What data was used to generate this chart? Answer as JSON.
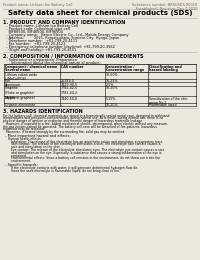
{
  "bg_color": "#ede8de",
  "header_left": "Product name: Lithium Ion Battery Cell",
  "header_right_line1": "Substance number: BRSUSDS-00010",
  "header_right_line2": "Established / Revision: Dec.7.2010",
  "main_title": "Safety data sheet for chemical products (SDS)",
  "section1_title": "1. PRODUCT AND COMPANY IDENTIFICATION",
  "section1_lines": [
    "  - Product name: Lithium Ion Battery Cell",
    "  - Product code: Cylindrical-type cell",
    "    BIF86500, BIF46500, BIF96504",
    "  - Company name:   Benco Electric Co., Ltd., Mobile Energy Company",
    "  - Address:         2021, Komatsuhara, Sumoto City, Hyogo, Japan",
    "  - Telephone number:   +81-799-20-4111",
    "  - Fax number:   +81-799-20-4123",
    "  - Emergency telephone number (daytime): +81-799-20-3562",
    "    (Night and holiday): +81-799-20-4101"
  ],
  "section2_title": "2. COMPOSITION / INFORMATION ON INGREDIENTS",
  "section2_sub": "  - Substance or preparation: Preparation",
  "section2_sub2": "    - Information about the chemical nature of product:",
  "col_headers1": [
    "Component / chemical name",
    "CAS number",
    "Concentration /\nConcentration range",
    "Classification and\nhazard labeling"
  ],
  "col_headers2": [
    "Several name",
    "",
    "Concentration range",
    "hazard labeling"
  ],
  "table_rows": [
    [
      "Lithium cobalt oxide\n(LiMnCo)PO4)",
      "-",
      "30-60%",
      "-"
    ],
    [
      "Iron",
      "26389-0",
      "10-25%",
      "-"
    ],
    [
      "Aluminum",
      "7429-90-5",
      "2-5%",
      "-"
    ],
    [
      "Graphite\n(Flake or graphite)\n(Artificial graphite)",
      "7782-42-5\n7782-44-2",
      "10-20%",
      "-"
    ],
    [
      "Copper",
      "7440-50-8",
      "5-15%",
      "Sensitization of the skin\ngroup No.2"
    ],
    [
      "Organic electrolyte",
      "-",
      "10-20%",
      "Flammable liquid"
    ]
  ],
  "section3_title": "3. HAZARDS IDENTIFICATION",
  "section3_lines": [
    "For the battery cell, chemical materials are stored in a hermetically sealed metal case, designed to withstand",
    "temperatures and pressures-concentrations during normal use. As a result, during normal use, there is no",
    "physical danger of ignition or explosion and thermal danger of hazardous materials leakage.",
    "   However, if exposed to a fire, added mechanical shocks, decomposed, when electric without any measure,",
    "the gas insides cannot be operated. The battery cell case will be breached of fire-patterns. hazardous",
    "materials may be released.",
    "   Moreover, if heated strongly by the surrounding fire, solid gas may be emitted."
  ],
  "section3_sub1": "  - Most important hazard and effects:",
  "section3_human_lines": [
    "     Human health effects:",
    "        Inhalation: The release of the electrolyte has an anesthetic action and stimulates a respiratory tract.",
    "        Skin contact: The release of the electrolyte stimulates a skin. The electrolyte skin contact causes a",
    "        sore and stimulation on the skin.",
    "        Eye contact: The release of the electrolyte stimulates eyes. The electrolyte eye contact causes a sore",
    "        and stimulation on the eye. Especially, a substance that causes a strong inflammation of the eye is",
    "        contained.",
    "        Environmental effects: Since a battery cell remains in the environment, do not throw out it into the",
    "        environment."
  ],
  "section3_sub2": "  - Specific hazards:",
  "section3_specific_lines": [
    "        If the electrolyte contacts with water, it will generate detrimental hydrogen fluoride.",
    "        Since the used electrolyte is flammable liquid, do not bring close to fire."
  ]
}
